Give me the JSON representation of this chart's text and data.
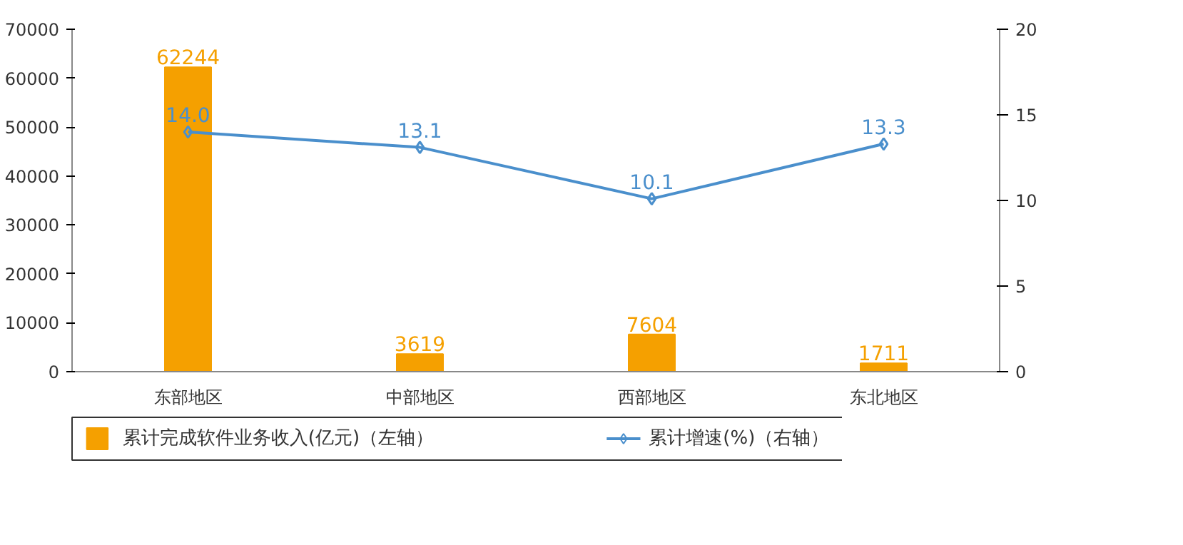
{
  "chart_data": {
    "type": "bar",
    "categories": [
      "东部地区",
      "中部地区",
      "西部地区",
      "东北地区"
    ],
    "series": [
      {
        "name": "累计完成软件业务收入(亿元)（左轴）",
        "color": "#f5a000",
        "values": [
          62244,
          3619,
          7604,
          1711
        ]
      },
      {
        "name": "累计增速(%)（右轴）",
        "type": "line",
        "axis": "y2",
        "marker": "diamond",
        "color": "#4a8fcc",
        "values": [
          14.0,
          13.1,
          10.1,
          13.3
        ],
        "value_labels": [
          "14.0",
          "13.1",
          "10.1",
          "13.3"
        ]
      }
    ],
    "ylim": [
      0,
      70000
    ],
    "yticks": [
      0,
      10000,
      20000,
      30000,
      40000,
      50000,
      60000,
      70000
    ],
    "y2lim": [
      0,
      20
    ],
    "y2ticks": [
      0,
      5,
      10,
      15,
      20
    ],
    "data_labels": true,
    "legend": "bottom",
    "grid": false
  }
}
